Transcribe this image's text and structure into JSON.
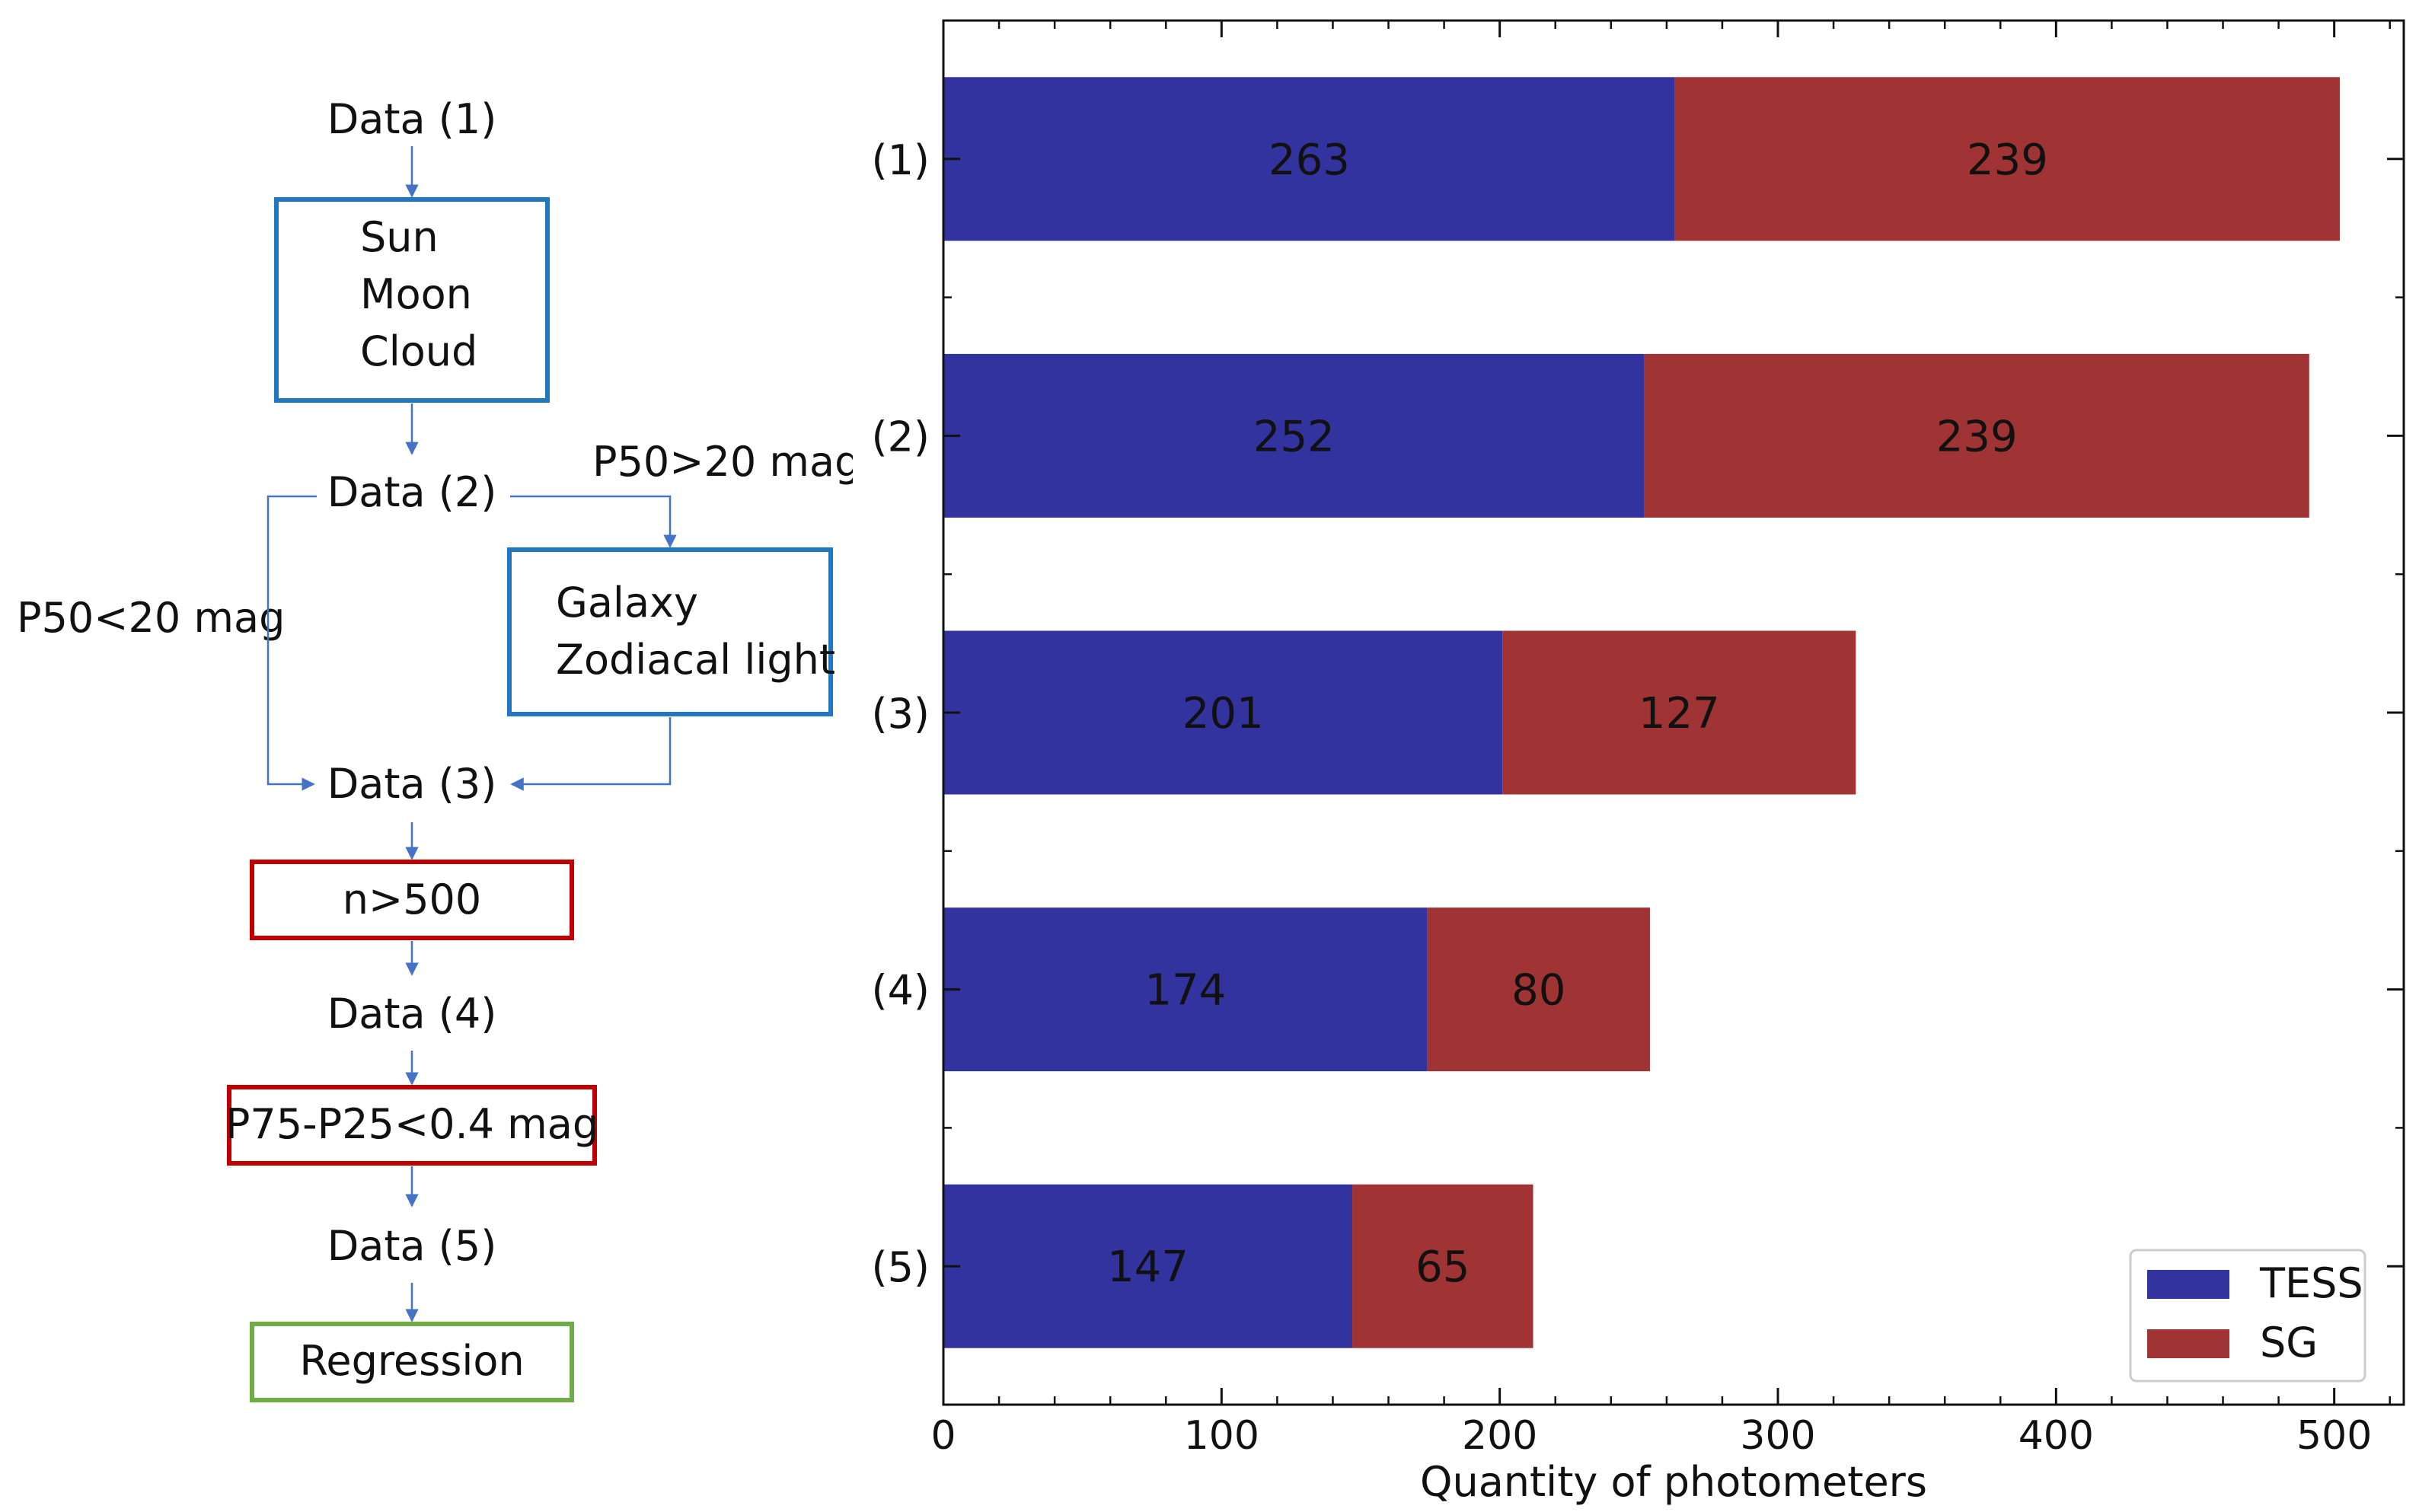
{
  "flowchart": {
    "data1": "Data (1)",
    "filter1": [
      "Sun",
      "Moon",
      "Cloud"
    ],
    "data2": "Data (2)",
    "branch_high": "P50>20 mag",
    "branch_low": "P50<20 mag",
    "filter2": [
      "Galaxy",
      "Zodiacal light"
    ],
    "data3": "Data (3)",
    "filter3": "n>500",
    "data4": "Data (4)",
    "filter4": "P75-P25<0.4 mag",
    "data5": "Data (5)",
    "final": "Regression",
    "colors": {
      "arrow": "#4472c4",
      "blue_box": "#1f78c1",
      "red_box": "#c00000",
      "green_box": "#70ad47"
    }
  },
  "chart_data": {
    "type": "bar",
    "orientation": "horizontal",
    "stacked": true,
    "categories": [
      "(1)",
      "(2)",
      "(3)",
      "(4)",
      "(5)"
    ],
    "series": [
      {
        "name": "TESS",
        "color": "#3333a0",
        "values": [
          263,
          252,
          201,
          174,
          147
        ]
      },
      {
        "name": "SG",
        "color": "#a03333",
        "values": [
          239,
          239,
          127,
          80,
          65
        ]
      }
    ],
    "xlabel": "Quantity of photometers",
    "ylabel": "",
    "xlim": [
      0,
      525
    ],
    "xticks": [
      0,
      100,
      200,
      300,
      400,
      500
    ],
    "legend": "bottom-right",
    "grid": false
  }
}
